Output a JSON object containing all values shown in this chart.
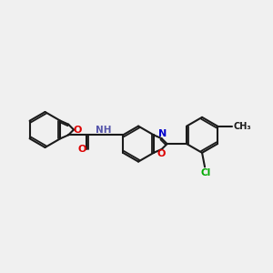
{
  "background_color": "#f0f0f0",
  "bond_color": "#1a1a1a",
  "atom_colors": {
    "O": "#dd0000",
    "N": "#0000cc",
    "Cl": "#00aa00",
    "H": "#5555aa",
    "C": "#1a1a1a"
  },
  "figsize": [
    3.0,
    3.0
  ],
  "dpi": 100,
  "xlim": [
    0,
    10
  ],
  "ylim": [
    2,
    8
  ]
}
